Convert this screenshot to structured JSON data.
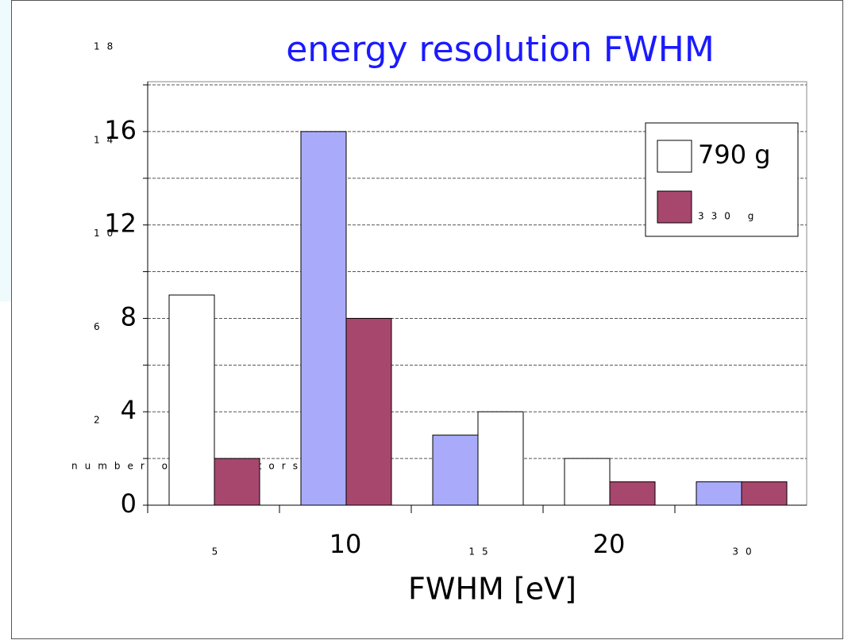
{
  "chart_data": {
    "type": "bar",
    "title": "energy resolution FWHM",
    "x_label": "FWHM [eV]",
    "y_label": "number of detectors",
    "categories": [
      "5",
      "10",
      "15",
      "20",
      "30"
    ],
    "series": [
      {
        "name": "790 g",
        "color": "#ffffff",
        "colors": [
          "#ffffff",
          "#a9abfa",
          "#a9abfa",
          "#ffffff",
          "#a9abfa"
        ],
        "values": [
          9,
          16,
          3,
          2,
          1
        ]
      },
      {
        "name": "330 g",
        "color": "#a8476e",
        "colors": [
          "#a8476e",
          "#a8476e",
          "#ffffff",
          "#a8476e",
          "#a8476e"
        ],
        "values": [
          2,
          8,
          4,
          1,
          1
        ]
      }
    ],
    "ylim": [
      0,
      18
    ],
    "yticks": [
      0,
      2,
      4,
      6,
      8,
      10,
      12,
      14,
      16,
      18
    ],
    "grid": true,
    "legend": "upper right"
  }
}
